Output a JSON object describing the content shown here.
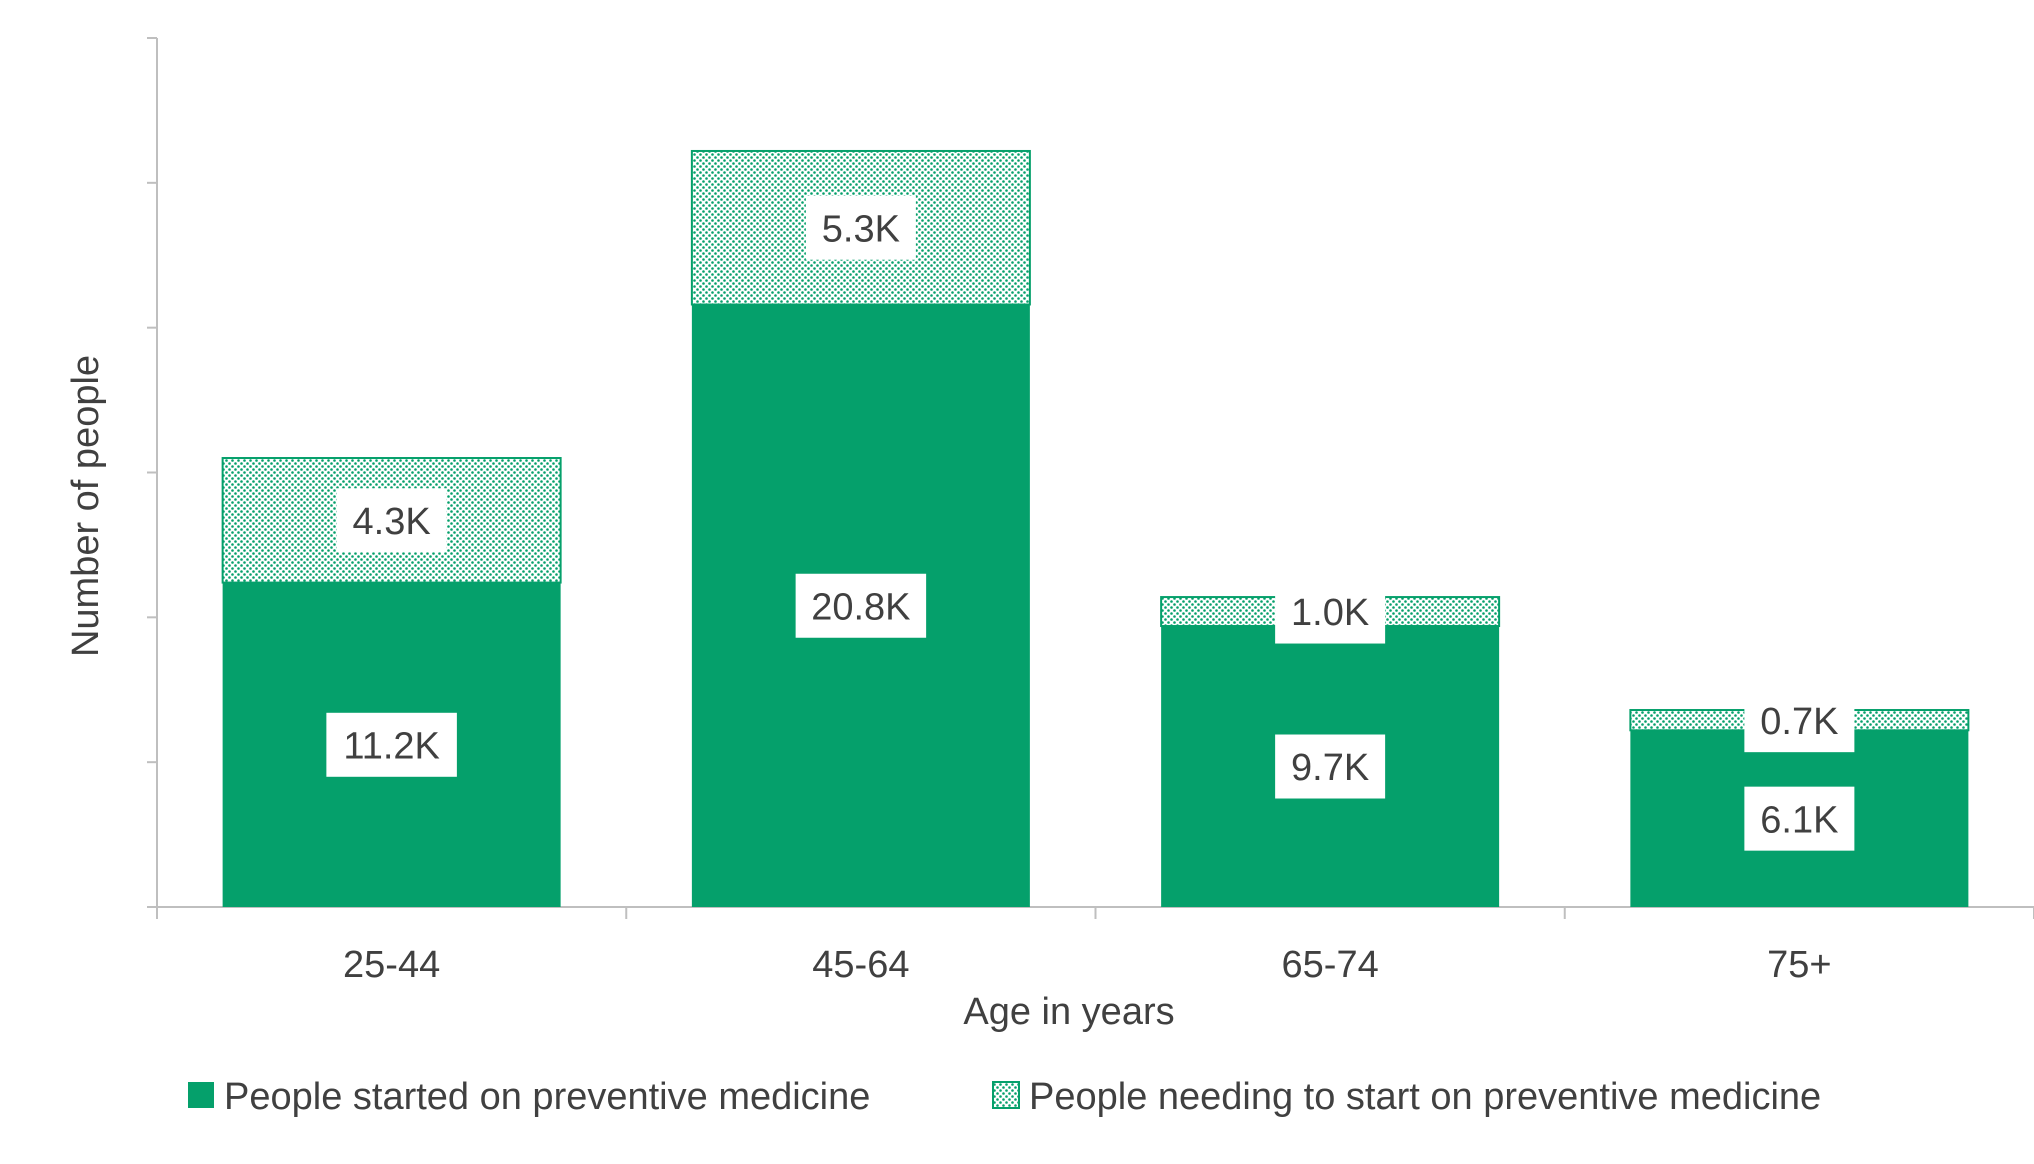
{
  "chart_data": {
    "type": "bar",
    "stacked": true,
    "title": "",
    "xlabel": "Age in years",
    "ylabel": "Number of people",
    "categories": [
      "25-44",
      "45-64",
      "65-74",
      "75+"
    ],
    "ylim": [
      0,
      30000
    ],
    "series": [
      {
        "name": "People started on preventive medicine",
        "values": [
          11200,
          20800,
          9700,
          6100
        ],
        "labels": [
          "11.2K",
          "20.8K",
          "9.7K",
          "6.1K"
        ],
        "pattern": "solid"
      },
      {
        "name": "People needing to start on preventive medicine",
        "values": [
          4300,
          5300,
          1000,
          700
        ],
        "labels": [
          "4.3K",
          "5.3K",
          "1.0K",
          "0.7K"
        ],
        "pattern": "dotted"
      }
    ],
    "legend_position": "bottom",
    "colors": {
      "bar": "#05a06b",
      "axis": "#bfbfbf",
      "text": "#404040",
      "label_bg": "#ffffff"
    }
  }
}
